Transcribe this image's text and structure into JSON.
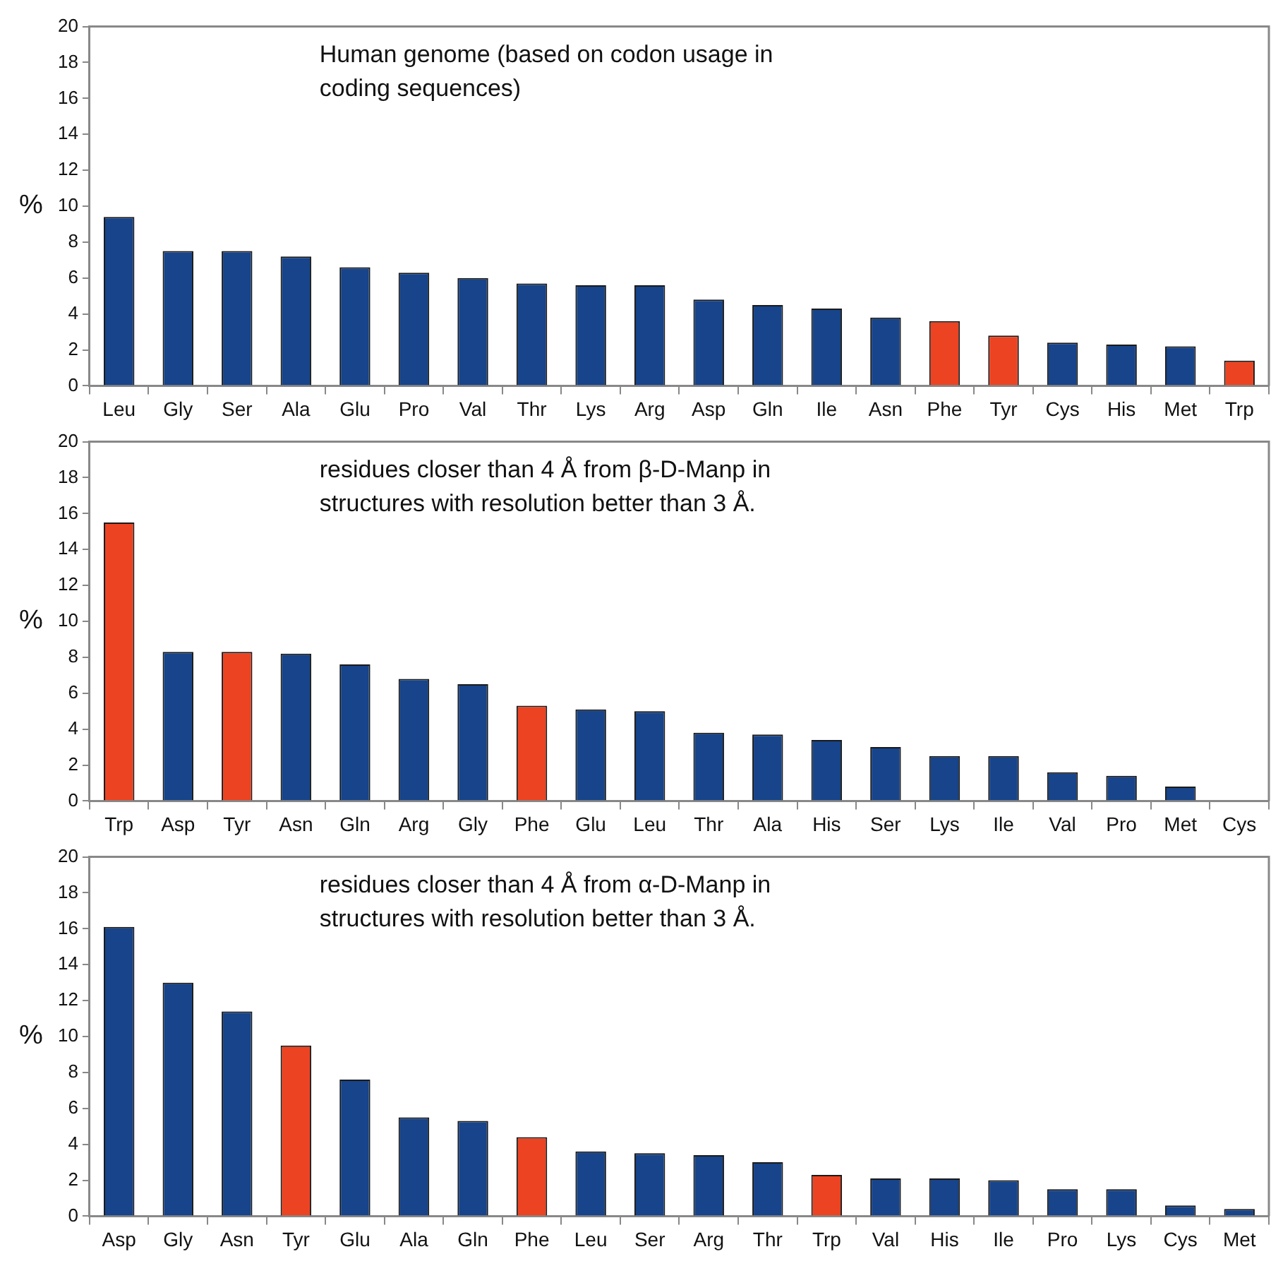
{
  "chart_data": [
    {
      "type": "bar",
      "ylabel": "%",
      "annotations": [
        "Human genome (based on codon usage in\ncoding sequences)"
      ],
      "categories": [
        "Leu",
        "Gly",
        "Ser",
        "Ala",
        "Glu",
        "Pro",
        "Val",
        "Thr",
        "Lys",
        "Arg",
        "Asp",
        "Gln",
        "Ile",
        "Asn",
        "Phe",
        "Tyr",
        "Cys",
        "His",
        "Met",
        "Trp"
      ],
      "values": [
        9.4,
        7.5,
        7.5,
        7.2,
        6.6,
        6.3,
        6.0,
        5.7,
        5.6,
        5.6,
        4.8,
        4.5,
        4.3,
        3.8,
        3.6,
        2.8,
        2.4,
        2.3,
        2.2,
        1.4
      ],
      "colors": [
        "#17448a",
        "#17448a",
        "#17448a",
        "#17448a",
        "#17448a",
        "#17448a",
        "#17448a",
        "#17448a",
        "#17448a",
        "#17448a",
        "#17448a",
        "#17448a",
        "#17448a",
        "#17448a",
        "#ec4322",
        "#ec4322",
        "#17448a",
        "#17448a",
        "#17448a",
        "#ec4322"
      ],
      "ylim": [
        0,
        20
      ],
      "yticks": [
        0,
        2,
        4,
        6,
        8,
        10,
        12,
        14,
        16,
        18,
        20
      ],
      "legend": false
    },
    {
      "type": "bar",
      "ylabel": "%",
      "annotations": [
        "residues closer than 4 Å from β-D-Manp in\nstructures with resolution better than 3 Å."
      ],
      "categories": [
        "Trp",
        "Asp",
        "Tyr",
        "Asn",
        "Gln",
        "Arg",
        "Gly",
        "Phe",
        "Glu",
        "Leu",
        "Thr",
        "Ala",
        "His",
        "Ser",
        "Lys",
        "Ile",
        "Val",
        "Pro",
        "Met",
        "Cys"
      ],
      "values": [
        15.5,
        8.3,
        8.3,
        8.2,
        7.6,
        6.8,
        6.5,
        5.3,
        5.1,
        5.0,
        3.8,
        3.7,
        3.4,
        3.0,
        2.5,
        2.5,
        1.6,
        1.4,
        0.8,
        0
      ],
      "colors": [
        "#ec4322",
        "#17448a",
        "#ec4322",
        "#17448a",
        "#17448a",
        "#17448a",
        "#17448a",
        "#ec4322",
        "#17448a",
        "#17448a",
        "#17448a",
        "#17448a",
        "#17448a",
        "#17448a",
        "#17448a",
        "#17448a",
        "#17448a",
        "#17448a",
        "#17448a",
        "#17448a"
      ],
      "ylim": [
        0,
        20
      ],
      "yticks": [
        0,
        2,
        4,
        6,
        8,
        10,
        12,
        14,
        16,
        18,
        20
      ],
      "legend": false
    },
    {
      "type": "bar",
      "ylabel": "%",
      "annotations": [
        "residues closer than 4 Å from α-D-Manp in\nstructures with resolution better than 3 Å."
      ],
      "categories": [
        "Asp",
        "Gly",
        "Asn",
        "Tyr",
        "Glu",
        "Ala",
        "Gln",
        "Phe",
        "Leu",
        "Ser",
        "Arg",
        "Thr",
        "Trp",
        "Val",
        "His",
        "Ile",
        "Pro",
        "Lys",
        "Cys",
        "Met"
      ],
      "values": [
        16.1,
        13.0,
        11.4,
        9.5,
        7.6,
        5.5,
        5.3,
        4.4,
        3.6,
        3.5,
        3.4,
        3.0,
        2.3,
        2.1,
        2.1,
        2.0,
        1.5,
        1.5,
        0.6,
        0.4
      ],
      "colors": [
        "#17448a",
        "#17448a",
        "#17448a",
        "#ec4322",
        "#17448a",
        "#17448a",
        "#17448a",
        "#ec4322",
        "#17448a",
        "#17448a",
        "#17448a",
        "#17448a",
        "#ec4322",
        "#17448a",
        "#17448a",
        "#17448a",
        "#17448a",
        "#17448a",
        "#17448a",
        "#17448a"
      ],
      "ylim": [
        0,
        20
      ],
      "yticks": [
        0,
        2,
        4,
        6,
        8,
        10,
        12,
        14,
        16,
        18,
        20
      ],
      "legend": false
    }
  ]
}
